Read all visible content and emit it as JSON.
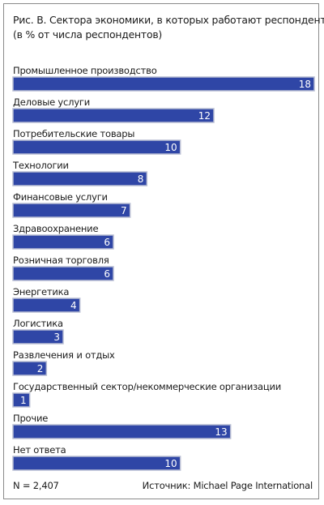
{
  "title_line1": "Рис. В. Сектора экономики, в которых работают респонденты",
  "title_line2": "(в % от числа респондентов)",
  "sample_size": "N = 2,407",
  "source": "Источник: Michael Page International",
  "colors": {
    "bar": "#2f46a6",
    "bar_edge": "#b8bdd3",
    "label": "#ffffff"
  },
  "chart_data": {
    "type": "bar",
    "orientation": "horizontal",
    "title": "Рис. В. Сектора экономики, в которых работают респонденты",
    "subtitle": "(в % от числа респондентов)",
    "grid": false,
    "categories": [
      "Промышленное производство",
      "Деловые услуги",
      "Потребительские товары",
      "Технологии",
      "Финансовые услуги",
      "Здравоохранение",
      "Розничная торговля",
      "Энергетика",
      "Логистика",
      "Развлечения и отдых",
      "Государственный сектор/некоммерческие организации",
      "Прочие",
      "Нет ответа"
    ],
    "values": [
      18,
      12,
      10,
      8,
      7,
      6,
      6,
      4,
      3,
      2,
      1,
      13,
      10
    ],
    "xlim": [
      0,
      18
    ]
  }
}
